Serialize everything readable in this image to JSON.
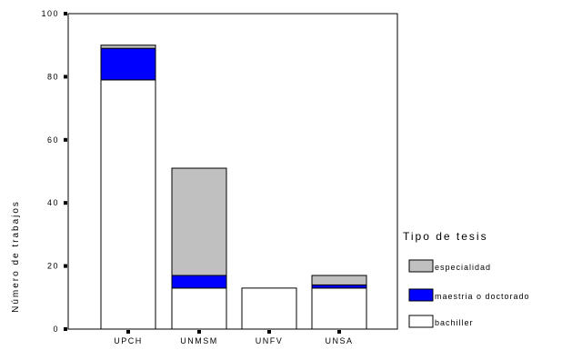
{
  "chart_data": {
    "type": "bar",
    "stacked": true,
    "categories": [
      "UPCH",
      "UNMSM",
      "UNFV",
      "UNSA"
    ],
    "series": [
      {
        "name": "bachiller",
        "values": [
          79,
          13,
          13,
          13
        ],
        "color": "#ffffff"
      },
      {
        "name": "maestria o doctorado",
        "values": [
          10,
          4,
          0,
          1
        ],
        "color": "#0000ff"
      },
      {
        "name": "especialidad",
        "values": [
          1,
          34,
          0,
          3
        ],
        "color": "#c0c0c0"
      }
    ],
    "ylabel": "Número de trabajos",
    "xlabel": "",
    "ylim": [
      0,
      100
    ],
    "yticks": [
      "0",
      "20",
      "40",
      "60",
      "80",
      "100"
    ],
    "legend": {
      "title": "Tipo de tesis",
      "placement": "right",
      "order": [
        "especialidad",
        "maestria o doctorado",
        "bachiller"
      ]
    },
    "grid": false
  }
}
